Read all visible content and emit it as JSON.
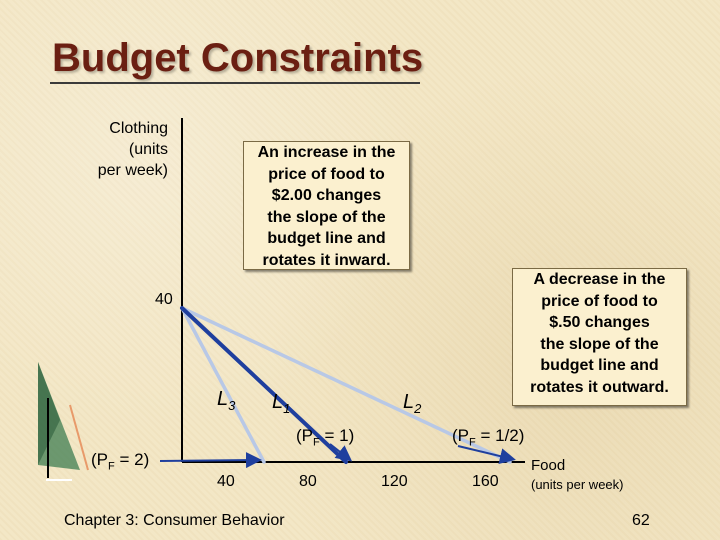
{
  "slide": {
    "title": "Budget Constraints",
    "footer": "Chapter 3: Consumer Behavior",
    "page_number": "62"
  },
  "callouts": {
    "increase": "An increase in the\nprice of food to\n$2.00 changes\nthe slope of the\nbudget line and\nrotates it inward.",
    "decrease": "A decrease in the\nprice of food to\n$.50 changes\nthe slope of the\nbudget line and\nrotates it outward."
  },
  "price_labels": {
    "pf2": {
      "pre": "(P",
      "sub": "F",
      "post": " = 2)"
    },
    "pf1": {
      "pre": "(P",
      "sub": "F",
      "post": " = 1)"
    },
    "pf_half": {
      "pre": "(P",
      "sub": "F",
      "post": " = 1/2)"
    }
  },
  "chart_data": {
    "type": "line",
    "title": "",
    "ylabel": "Clothing\n(units\nper week)",
    "xlabel": "Food",
    "xlabel_sub": "(units per week)",
    "y_ticks": [
      {
        "value": 40,
        "label": "40"
      }
    ],
    "x_ticks": [
      {
        "value": 40,
        "label": "40"
      },
      {
        "value": 80,
        "label": "80"
      },
      {
        "value": 120,
        "label": "120"
      },
      {
        "value": 160,
        "label": "160"
      }
    ],
    "x_range": [
      0,
      200
    ],
    "y_range": [
      0,
      80
    ],
    "series": [
      {
        "name": "L",
        "sub": "3",
        "color": "#b8c8e6",
        "points": [
          [
            0,
            40
          ],
          [
            40,
            0
          ]
        ]
      },
      {
        "name": "L",
        "sub": "1",
        "color": "#1f3f9e",
        "points": [
          [
            0,
            40
          ],
          [
            80,
            0
          ]
        ]
      },
      {
        "name": "L",
        "sub": "2",
        "color": "#b8c8e6",
        "points": [
          [
            0,
            40
          ],
          [
            160,
            0
          ]
        ]
      }
    ],
    "colors": {
      "axis": "#000000",
      "arrow": "#1f3f9e",
      "title": "#6b1f12"
    }
  }
}
